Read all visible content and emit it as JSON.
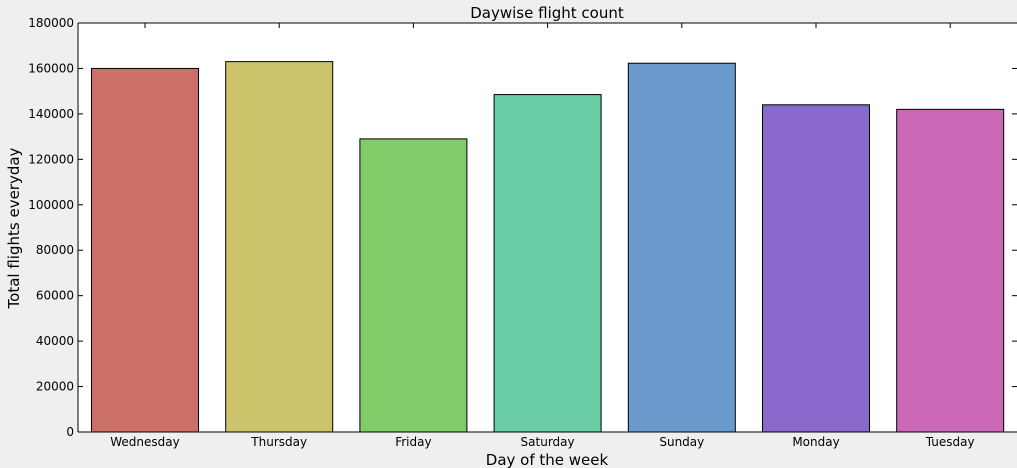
{
  "chart_data": {
    "type": "bar",
    "title": "Daywise flight count",
    "xlabel": "Day of the week",
    "ylabel": "Total flights everyday",
    "categories": [
      "Wednesday",
      "Thursday",
      "Friday",
      "Saturday",
      "Sunday",
      "Monday",
      "Tuesday"
    ],
    "values": [
      160000,
      163000,
      129000,
      148500,
      162300,
      144000,
      142000
    ],
    "colors": [
      "#cc6f67",
      "#ccc36b",
      "#81cc69",
      "#68cca5",
      "#6a9bcc",
      "#8a69cc",
      "#cb69b8"
    ],
    "ylim": [
      0,
      180000
    ],
    "yticks": [
      "0",
      "20000",
      "40000",
      "60000",
      "80000",
      "100000",
      "120000",
      "140000",
      "160000",
      "180000"
    ],
    "grid": false,
    "legend": "none",
    "background": "#efefef",
    "plot_background": "#ffffff"
  }
}
